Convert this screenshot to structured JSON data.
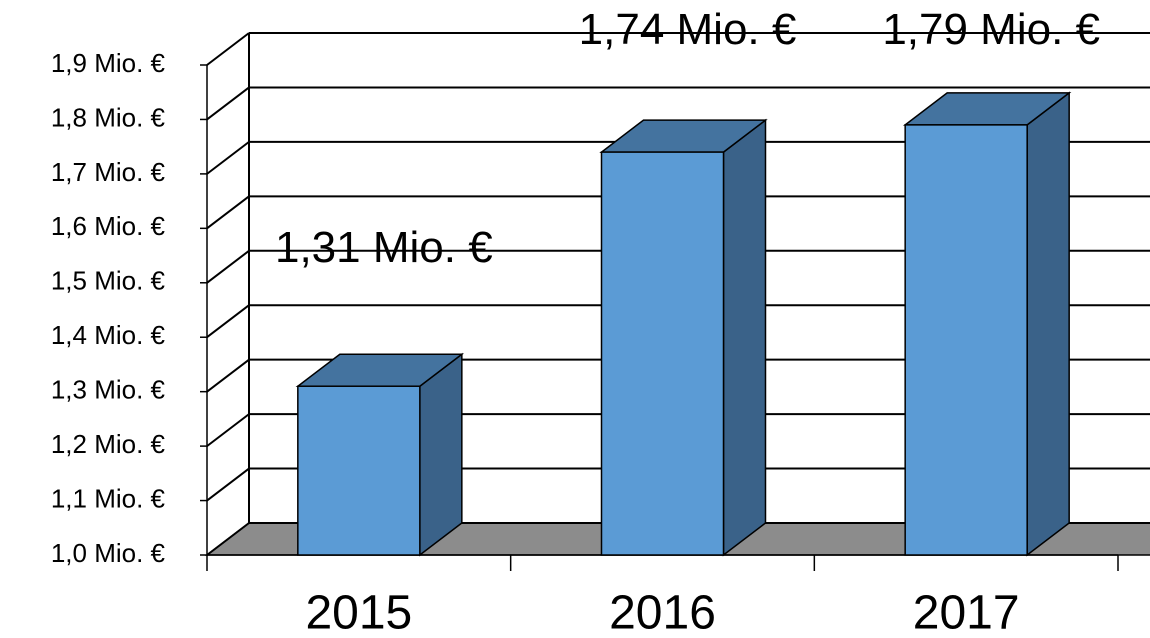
{
  "chart_data": {
    "type": "bar3d",
    "categories": [
      "2015",
      "2016",
      "2017"
    ],
    "values": [
      1.31,
      1.74,
      1.79
    ],
    "value_labels": [
      "1,31 Mio. €",
      "1,74 Mio. €",
      "1,79 Mio. €"
    ],
    "colors": {
      "front": "#5b9bd5",
      "side": "#3a6289",
      "top": "#44739f",
      "floor": "#8c8c8c"
    },
    "ylim": [
      1.0,
      1.9
    ],
    "yticks": [
      {
        "value": 1.0,
        "label": "1,0 Mio. €"
      },
      {
        "value": 1.1,
        "label": "1,1 Mio. €"
      },
      {
        "value": 1.2,
        "label": "1,2 Mio. €"
      },
      {
        "value": 1.3,
        "label": "1,3 Mio. €"
      },
      {
        "value": 1.4,
        "label": "1,4 Mio. €"
      },
      {
        "value": 1.5,
        "label": "1,5 Mio. €"
      },
      {
        "value": 1.6,
        "label": "1,6 Mio. €"
      },
      {
        "value": 1.7,
        "label": "1,7 Mio. €"
      },
      {
        "value": 1.8,
        "label": "1,8 Mio. €"
      },
      {
        "value": 1.9,
        "label": "1,9 Mio. €"
      }
    ],
    "grid": true
  }
}
